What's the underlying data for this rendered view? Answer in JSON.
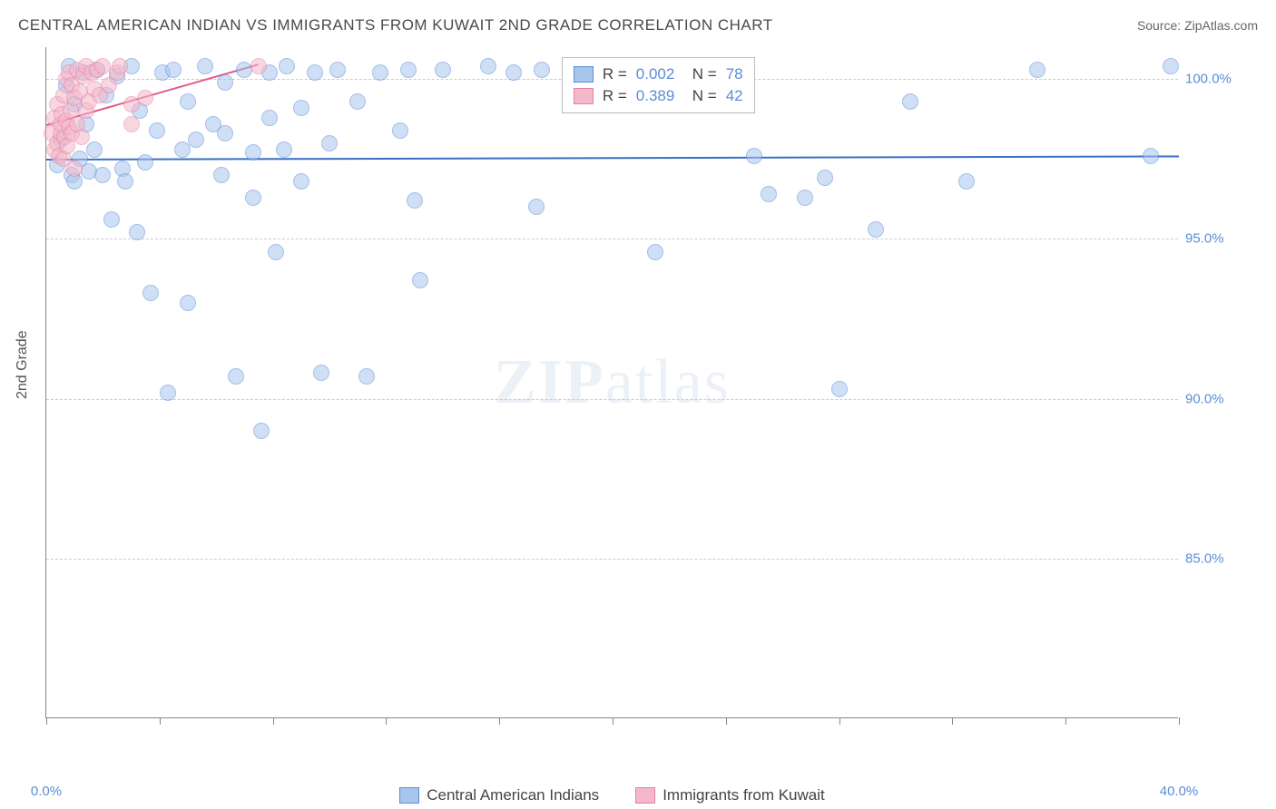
{
  "header": {
    "title": "CENTRAL AMERICAN INDIAN VS IMMIGRANTS FROM KUWAIT 2ND GRADE CORRELATION CHART",
    "source": "Source: ZipAtlas.com"
  },
  "chart": {
    "type": "scatter",
    "y_axis_label": "2nd Grade",
    "background_color": "#ffffff",
    "grid_color": "#cccccc",
    "axis_color": "#888888",
    "xlim": [
      0,
      40
    ],
    "ylim": [
      80,
      101
    ],
    "x_ticks": [
      0,
      4,
      8,
      12,
      16,
      20,
      24,
      28,
      32,
      36,
      40
    ],
    "x_tick_labels": {
      "0": "0.0%",
      "40": "40.0%"
    },
    "y_ticks": [
      85,
      90,
      95,
      100
    ],
    "y_tick_labels": {
      "85": "85.0%",
      "90": "90.0%",
      "95": "95.0%",
      "100": "100.0%"
    },
    "marker_radius": 9,
    "marker_stroke_width": 1.5,
    "marker_fill_opacity": 0.25,
    "series": [
      {
        "id": "blue",
        "label": "Central American Indians",
        "fill": "#a8c5ed",
        "stroke": "#5b8dd6",
        "R": "0.002",
        "N": "78",
        "trend": {
          "x1": 0,
          "y1": 97.5,
          "x2": 40,
          "y2": 97.6,
          "color": "#3b6fc4",
          "width": 2
        },
        "points": [
          [
            0.4,
            97.3
          ],
          [
            0.5,
            98.1
          ],
          [
            0.7,
            99.8
          ],
          [
            0.8,
            100.4
          ],
          [
            0.9,
            97.0
          ],
          [
            1.0,
            99.2
          ],
          [
            1.0,
            96.8
          ],
          [
            1.2,
            97.5
          ],
          [
            1.3,
            100.2
          ],
          [
            1.4,
            98.6
          ],
          [
            1.5,
            97.1
          ],
          [
            1.7,
            97.8
          ],
          [
            1.8,
            100.3
          ],
          [
            2.0,
            97.0
          ],
          [
            2.1,
            99.5
          ],
          [
            2.3,
            95.6
          ],
          [
            2.5,
            100.1
          ],
          [
            2.7,
            97.2
          ],
          [
            2.8,
            96.8
          ],
          [
            3.0,
            100.4
          ],
          [
            3.2,
            95.2
          ],
          [
            3.3,
            99.0
          ],
          [
            3.5,
            97.4
          ],
          [
            3.7,
            93.3
          ],
          [
            3.9,
            98.4
          ],
          [
            4.1,
            100.2
          ],
          [
            4.3,
            90.2
          ],
          [
            4.5,
            100.3
          ],
          [
            4.8,
            97.8
          ],
          [
            5.0,
            93.0
          ],
          [
            5.0,
            99.3
          ],
          [
            5.3,
            98.1
          ],
          [
            5.6,
            100.4
          ],
          [
            5.9,
            98.6
          ],
          [
            6.2,
            97.0
          ],
          [
            6.3,
            99.9
          ],
          [
            6.3,
            98.3
          ],
          [
            6.7,
            90.7
          ],
          [
            7.0,
            100.3
          ],
          [
            7.3,
            96.3
          ],
          [
            7.3,
            97.7
          ],
          [
            7.6,
            89.0
          ],
          [
            7.9,
            100.2
          ],
          [
            7.9,
            98.8
          ],
          [
            8.1,
            94.6
          ],
          [
            8.4,
            97.8
          ],
          [
            8.5,
            100.4
          ],
          [
            9.0,
            99.1
          ],
          [
            9.0,
            96.8
          ],
          [
            9.5,
            100.2
          ],
          [
            9.7,
            90.8
          ],
          [
            10.0,
            98.0
          ],
          [
            10.3,
            100.3
          ],
          [
            11.0,
            99.3
          ],
          [
            11.3,
            90.7
          ],
          [
            11.8,
            100.2
          ],
          [
            12.5,
            98.4
          ],
          [
            12.8,
            100.3
          ],
          [
            13.0,
            96.2
          ],
          [
            13.2,
            93.7
          ],
          [
            14.0,
            100.3
          ],
          [
            15.6,
            100.4
          ],
          [
            16.5,
            100.2
          ],
          [
            17.3,
            96.0
          ],
          [
            17.5,
            100.3
          ],
          [
            20.5,
            100.4
          ],
          [
            21.5,
            94.6
          ],
          [
            25.0,
            97.6
          ],
          [
            25.5,
            96.4
          ],
          [
            26.8,
            96.3
          ],
          [
            27.5,
            96.9
          ],
          [
            28.0,
            90.3
          ],
          [
            29.3,
            95.3
          ],
          [
            30.5,
            99.3
          ],
          [
            32.5,
            96.8
          ],
          [
            35.0,
            100.3
          ],
          [
            39.0,
            97.6
          ],
          [
            39.7,
            100.4
          ]
        ]
      },
      {
        "id": "pink",
        "label": "Immigrants from Kuwait",
        "fill": "#f5b7ca",
        "stroke": "#e681a3",
        "R": "0.389",
        "N": "42",
        "trend": {
          "x1": 0,
          "y1": 98.6,
          "x2": 7.5,
          "y2": 100.5,
          "color": "#e05a8a",
          "width": 2
        },
        "points": [
          [
            0.2,
            98.3
          ],
          [
            0.3,
            98.8
          ],
          [
            0.3,
            97.8
          ],
          [
            0.4,
            98.0
          ],
          [
            0.4,
            99.2
          ],
          [
            0.45,
            97.6
          ],
          [
            0.5,
            98.3
          ],
          [
            0.5,
            98.6
          ],
          [
            0.55,
            98.9
          ],
          [
            0.6,
            97.5
          ],
          [
            0.6,
            99.5
          ],
          [
            0.65,
            98.2
          ],
          [
            0.7,
            98.7
          ],
          [
            0.7,
            100.0
          ],
          [
            0.75,
            97.9
          ],
          [
            0.8,
            98.5
          ],
          [
            0.8,
            100.2
          ],
          [
            0.85,
            99.0
          ],
          [
            0.9,
            98.3
          ],
          [
            0.9,
            99.8
          ],
          [
            1.0,
            99.4
          ],
          [
            1.0,
            97.2
          ],
          [
            1.1,
            100.3
          ],
          [
            1.1,
            98.6
          ],
          [
            1.2,
            99.6
          ],
          [
            1.25,
            98.2
          ],
          [
            1.3,
            100.1
          ],
          [
            1.4,
            99.0
          ],
          [
            1.4,
            100.4
          ],
          [
            1.5,
            99.3
          ],
          [
            1.6,
            100.2
          ],
          [
            1.7,
            99.7
          ],
          [
            1.8,
            100.3
          ],
          [
            1.9,
            99.5
          ],
          [
            2.0,
            100.4
          ],
          [
            2.2,
            99.8
          ],
          [
            2.5,
            100.2
          ],
          [
            2.6,
            100.4
          ],
          [
            3.0,
            99.2
          ],
          [
            3.0,
            98.6
          ],
          [
            3.5,
            99.4
          ],
          [
            7.5,
            100.4
          ]
        ]
      }
    ],
    "stats_box": {
      "left_pct": 45.5,
      "top_pct": 1.5
    },
    "legend_swatch": {
      "w": 22,
      "h": 18
    }
  },
  "watermark": {
    "zip": "ZIP",
    "atlas": "atlas"
  }
}
